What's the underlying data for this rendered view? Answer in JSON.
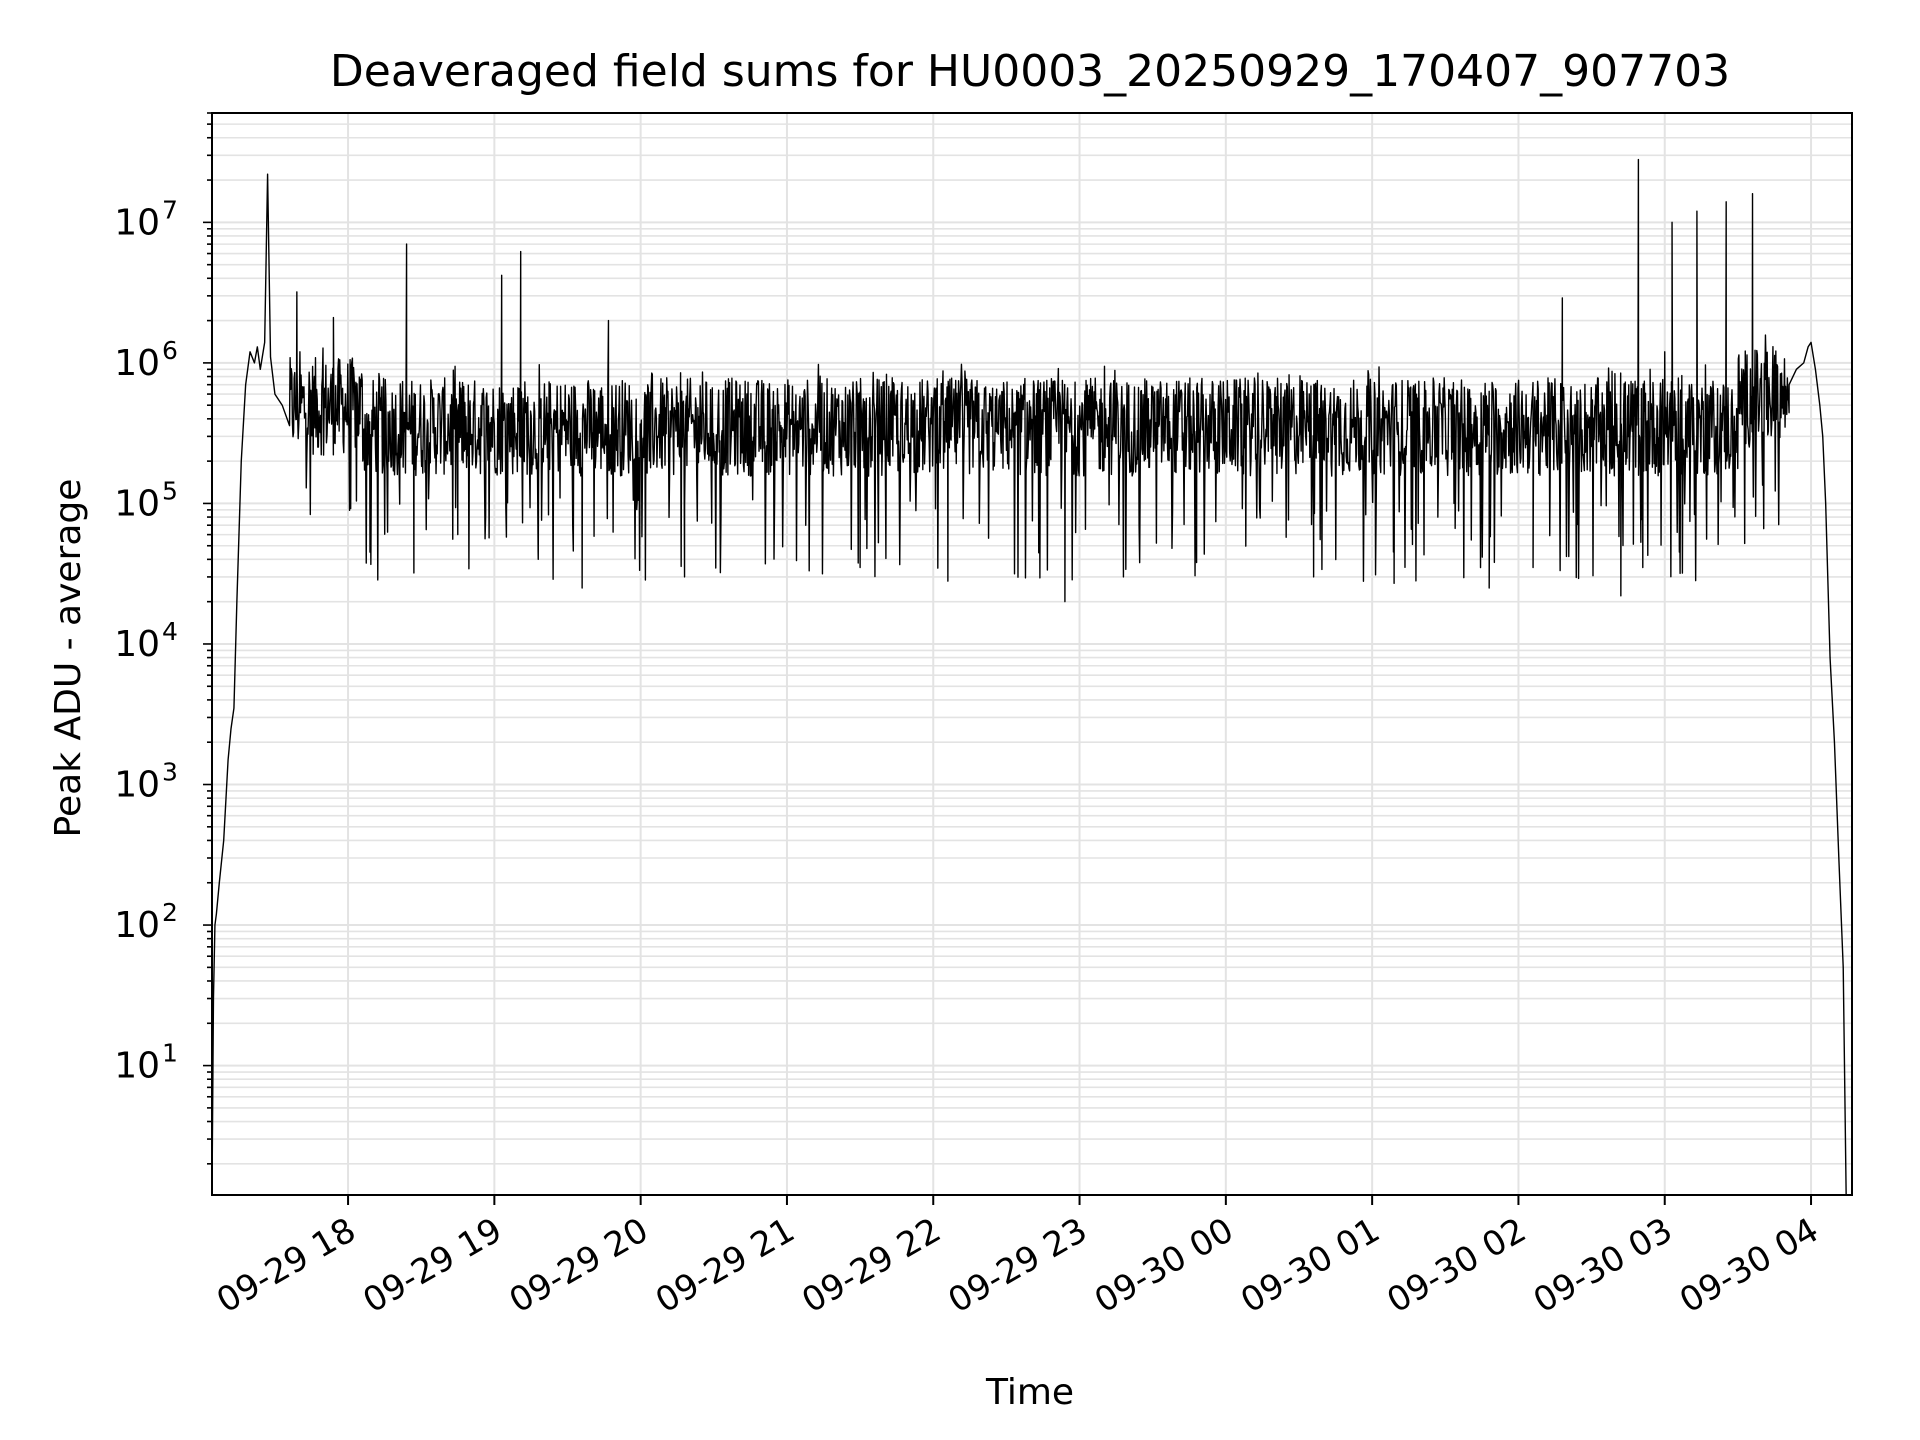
{
  "chart_data": {
    "type": "line",
    "title": "Deaveraged field sums for HU0003_20250929_170407_907703",
    "xlabel": "Time",
    "ylabel": "Peak ADU - average",
    "yscale": "log",
    "ylim": [
      1.2,
      60000000
    ],
    "xlim_hours": [
      17.07,
      28.28
    ],
    "grid": true,
    "line_color": "#000000",
    "x_tick_labels": [
      {
        "label": "09-29 18",
        "hour": 18
      },
      {
        "label": "09-29 19",
        "hour": 19
      },
      {
        "label": "09-29 20",
        "hour": 20
      },
      {
        "label": "09-29 21",
        "hour": 21
      },
      {
        "label": "09-29 22",
        "hour": 22
      },
      {
        "label": "09-29 23",
        "hour": 23
      },
      {
        "label": "09-30 00",
        "hour": 24
      },
      {
        "label": "09-30 01",
        "hour": 25
      },
      {
        "label": "09-30 02",
        "hour": 26
      },
      {
        "label": "09-30 03",
        "hour": 27
      },
      {
        "label": "09-30 04",
        "hour": 28
      }
    ],
    "y_tick_labels": [
      {
        "base": "10",
        "exp": "1",
        "value": 10
      },
      {
        "base": "10",
        "exp": "2",
        "value": 100
      },
      {
        "base": "10",
        "exp": "3",
        "value": 1000
      },
      {
        "base": "10",
        "exp": "4",
        "value": 10000
      },
      {
        "base": "10",
        "exp": "5",
        "value": 100000
      },
      {
        "base": "10",
        "exp": "6",
        "value": 1000000
      },
      {
        "base": "10",
        "exp": "7",
        "value": 10000000
      }
    ],
    "series": [
      {
        "name": "Peak ADU - average",
        "baseline": 350000,
        "points": [
          [
            17.07,
            1.2
          ],
          [
            17.08,
            30
          ],
          [
            17.09,
            100
          ],
          [
            17.1,
            120
          ],
          [
            17.12,
            200
          ],
          [
            17.15,
            400
          ],
          [
            17.18,
            1500
          ],
          [
            17.2,
            2500
          ],
          [
            17.22,
            3500
          ],
          [
            17.24,
            20000
          ],
          [
            17.27,
            200000
          ],
          [
            17.3,
            700000
          ],
          [
            17.33,
            1200000
          ],
          [
            17.36,
            1000000
          ],
          [
            17.38,
            1300000
          ],
          [
            17.4,
            900000
          ],
          [
            17.43,
            1400000
          ],
          [
            17.45,
            22000000
          ],
          [
            17.47,
            1100000
          ],
          [
            17.5,
            600000
          ],
          [
            17.55,
            500000
          ],
          [
            17.6,
            400000
          ],
          [
            27.85,
            700000
          ],
          [
            27.9,
            900000
          ],
          [
            27.95,
            1000000
          ],
          [
            27.98,
            1300000
          ],
          [
            28.0,
            1400000
          ],
          [
            28.03,
            900000
          ],
          [
            28.06,
            500000
          ],
          [
            28.08,
            300000
          ],
          [
            28.1,
            100000
          ],
          [
            28.13,
            8000
          ],
          [
            28.16,
            2000
          ],
          [
            28.19,
            300
          ],
          [
            28.22,
            50
          ],
          [
            28.24,
            1.2
          ]
        ],
        "spikes_high": [
          [
            17.45,
            22000000
          ],
          [
            17.65,
            3200000
          ],
          [
            17.9,
            2100000
          ],
          [
            18.4,
            7000000
          ],
          [
            19.05,
            4200000
          ],
          [
            19.18,
            6200000
          ],
          [
            19.78,
            2000000
          ],
          [
            26.3,
            2900000
          ],
          [
            26.82,
            28000000
          ],
          [
            27.05,
            10000000
          ],
          [
            27.22,
            12000000
          ],
          [
            27.42,
            14000000
          ],
          [
            27.6,
            16000000
          ],
          [
            27.0,
            1200000
          ],
          [
            26.9,
            900000
          ]
        ],
        "spikes_low": [
          [
            18.15,
            45000
          ],
          [
            18.45,
            32000
          ],
          [
            18.75,
            60000
          ],
          [
            19.3,
            40000
          ],
          [
            19.6,
            25000
          ],
          [
            20.3,
            30000
          ],
          [
            21.5,
            35000
          ],
          [
            22.1,
            28000
          ],
          [
            22.9,
            20000
          ],
          [
            23.3,
            30000
          ],
          [
            23.8,
            38000
          ],
          [
            24.6,
            30000
          ],
          [
            25.15,
            27000
          ],
          [
            25.8,
            25000
          ],
          [
            26.1,
            35000
          ],
          [
            26.7,
            22000
          ],
          [
            26.85,
            35000
          ],
          [
            27.1,
            45000
          ]
        ]
      }
    ]
  }
}
